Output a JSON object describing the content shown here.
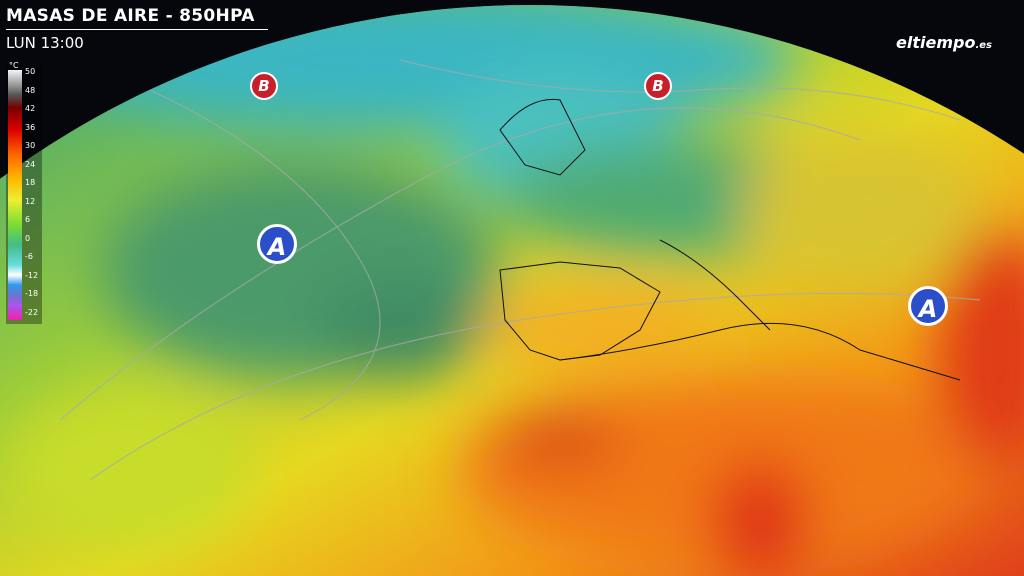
{
  "header": {
    "title": "MASAS DE AIRE - 850HPA",
    "time": "LUN 13:00"
  },
  "logo": {
    "text": "eltiempo",
    "suffix": ".es"
  },
  "legend": {
    "unit": "°C",
    "labels": [
      50,
      48,
      42,
      36,
      30,
      24,
      18,
      12,
      6,
      0,
      -6,
      -12,
      -18,
      -22
    ]
  },
  "markers": [
    {
      "label": "A"
    },
    {
      "label": "A"
    },
    {
      "label": "B"
    },
    {
      "label": "B"
    }
  ]
}
